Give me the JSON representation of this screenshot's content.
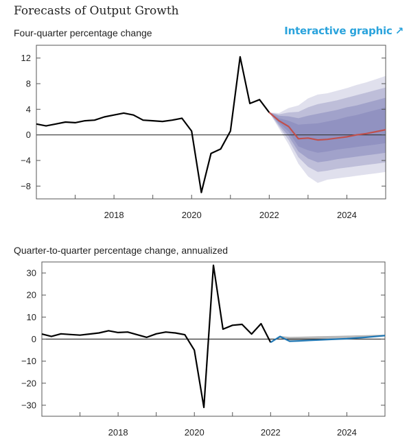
{
  "page": {
    "title": "Forecasts of Output Growth",
    "link_label": "Interactive graphic",
    "link_icon": "arrow-up-right-icon",
    "link_color": "#2aa3dc"
  },
  "chart_data": [
    {
      "type": "line",
      "title": "Four-quarter percentage change",
      "xlabel": "",
      "ylabel": "",
      "xlim": [
        2016.0,
        2025.0
      ],
      "ylim": [
        -10,
        14
      ],
      "yticks": [
        12,
        8,
        4,
        0,
        -4,
        -8
      ],
      "xticks": [
        2018,
        2020,
        2022,
        2024
      ],
      "grid": false,
      "colors": {
        "history": "#000000",
        "forecast": "#c0504d",
        "band": "#8e8fbf"
      },
      "history": {
        "x": [
          2016.0,
          2016.25,
          2016.5,
          2016.75,
          2017.0,
          2017.25,
          2017.5,
          2017.75,
          2018.0,
          2018.25,
          2018.5,
          2018.75,
          2019.0,
          2019.25,
          2019.5,
          2019.75,
          2020.0,
          2020.25,
          2020.5,
          2020.75,
          2021.0,
          2021.25,
          2021.5,
          2021.75,
          2022.0
        ],
        "values": [
          1.7,
          1.4,
          1.7,
          2.0,
          1.9,
          2.2,
          2.3,
          2.8,
          3.1,
          3.4,
          3.1,
          2.3,
          2.2,
          2.1,
          2.3,
          2.6,
          0.6,
          -9.0,
          -2.9,
          -2.2,
          0.6,
          12.2,
          4.9,
          5.5,
          3.5
        ]
      },
      "forecast": {
        "x": [
          2022.0,
          2022.25,
          2022.5,
          2022.75,
          2023.0,
          2023.25,
          2023.5,
          2023.75,
          2024.0,
          2024.25,
          2024.5,
          2024.75,
          2025.0
        ],
        "values": [
          3.5,
          2.2,
          1.3,
          -0.6,
          -0.5,
          -0.8,
          -0.7,
          -0.5,
          -0.3,
          0.0,
          0.2,
          0.5,
          0.8
        ]
      },
      "bands": [
        {
          "lower": [
            3.5,
            1.0,
            -1.5,
            -4.5,
            -6.5,
            -7.5,
            -7.0,
            -6.8,
            -6.6,
            -6.4,
            -6.2,
            -6.0,
            -5.8
          ],
          "upper": [
            3.5,
            3.4,
            4.2,
            4.6,
            5.7,
            6.3,
            6.5,
            6.9,
            7.3,
            7.8,
            8.2,
            8.7,
            9.2
          ]
        },
        {
          "lower": [
            3.5,
            1.3,
            -0.8,
            -3.5,
            -5.0,
            -5.8,
            -5.6,
            -5.3,
            -5.1,
            -4.9,
            -4.7,
            -4.5,
            -4.3
          ],
          "upper": [
            3.5,
            3.2,
            3.5,
            3.6,
            4.3,
            4.8,
            5.1,
            5.4,
            5.8,
            6.2,
            6.6,
            7.0,
            7.4
          ]
        },
        {
          "lower": [
            3.5,
            1.6,
            -0.2,
            -2.6,
            -3.7,
            -4.3,
            -4.1,
            -3.8,
            -3.6,
            -3.4,
            -3.2,
            -3.0,
            -2.8
          ],
          "upper": [
            3.5,
            3.0,
            2.9,
            2.6,
            3.0,
            3.3,
            3.6,
            3.9,
            4.3,
            4.6,
            5.0,
            5.4,
            5.8
          ]
        },
        {
          "lower": [
            3.5,
            1.9,
            0.5,
            -1.8,
            -2.4,
            -2.8,
            -2.6,
            -2.3,
            -2.1,
            -1.9,
            -1.7,
            -1.5,
            -1.3
          ],
          "upper": [
            3.5,
            2.6,
            2.2,
            1.6,
            1.7,
            1.8,
            2.1,
            2.4,
            2.8,
            3.1,
            3.5,
            3.9,
            4.3
          ]
        }
      ]
    },
    {
      "type": "line",
      "title": "Quarter-to-quarter percentage change, annualized",
      "xlabel": "",
      "ylabel": "",
      "xlim": [
        2016.0,
        2025.0
      ],
      "ylim": [
        -35,
        35
      ],
      "yticks": [
        30,
        20,
        10,
        0,
        -10,
        -20,
        -30
      ],
      "xticks": [
        2018,
        2020,
        2022,
        2024
      ],
      "grid": false,
      "colors": {
        "history": "#000000",
        "forecast": "#1f77b4",
        "range": "#9a9a9a"
      },
      "history": {
        "x": [
          2016.0,
          2016.25,
          2016.5,
          2016.75,
          2017.0,
          2017.25,
          2017.5,
          2017.75,
          2018.0,
          2018.25,
          2018.5,
          2018.75,
          2019.0,
          2019.25,
          2019.5,
          2019.75,
          2020.0,
          2020.25,
          2020.5,
          2020.75,
          2021.0,
          2021.25,
          2021.5,
          2021.75,
          2022.0
        ],
        "values": [
          2.3,
          1.2,
          2.4,
          2.1,
          1.8,
          2.3,
          2.8,
          3.8,
          3.0,
          3.2,
          2.0,
          0.8,
          2.4,
          3.2,
          2.8,
          2.0,
          -5.0,
          -31.0,
          33.5,
          4.5,
          6.3,
          6.7,
          2.3,
          7.0,
          -1.5
        ]
      },
      "forecast": {
        "x": [
          2022.0,
          2022.25,
          2022.5,
          2022.75,
          2023.0,
          2023.25,
          2023.5,
          2023.75,
          2024.0,
          2024.25,
          2024.5,
          2024.75,
          2025.0
        ],
        "values": [
          -1.5,
          1.2,
          -1.0,
          -0.8,
          -0.6,
          -0.4,
          -0.2,
          0.0,
          0.2,
          0.5,
          0.8,
          1.2,
          1.6
        ]
      },
      "range": {
        "lower": [
          -1.5,
          0.5,
          -1.2,
          -1.0,
          -0.8,
          -0.6,
          -0.4,
          -0.2,
          0.0,
          0.3,
          0.6,
          1.0,
          1.4
        ],
        "upper": [
          -1.5,
          1.4,
          1.0,
          1.1,
          1.2,
          1.3,
          1.4,
          1.5,
          1.6,
          1.7,
          1.8,
          1.9,
          2.0
        ]
      }
    }
  ]
}
